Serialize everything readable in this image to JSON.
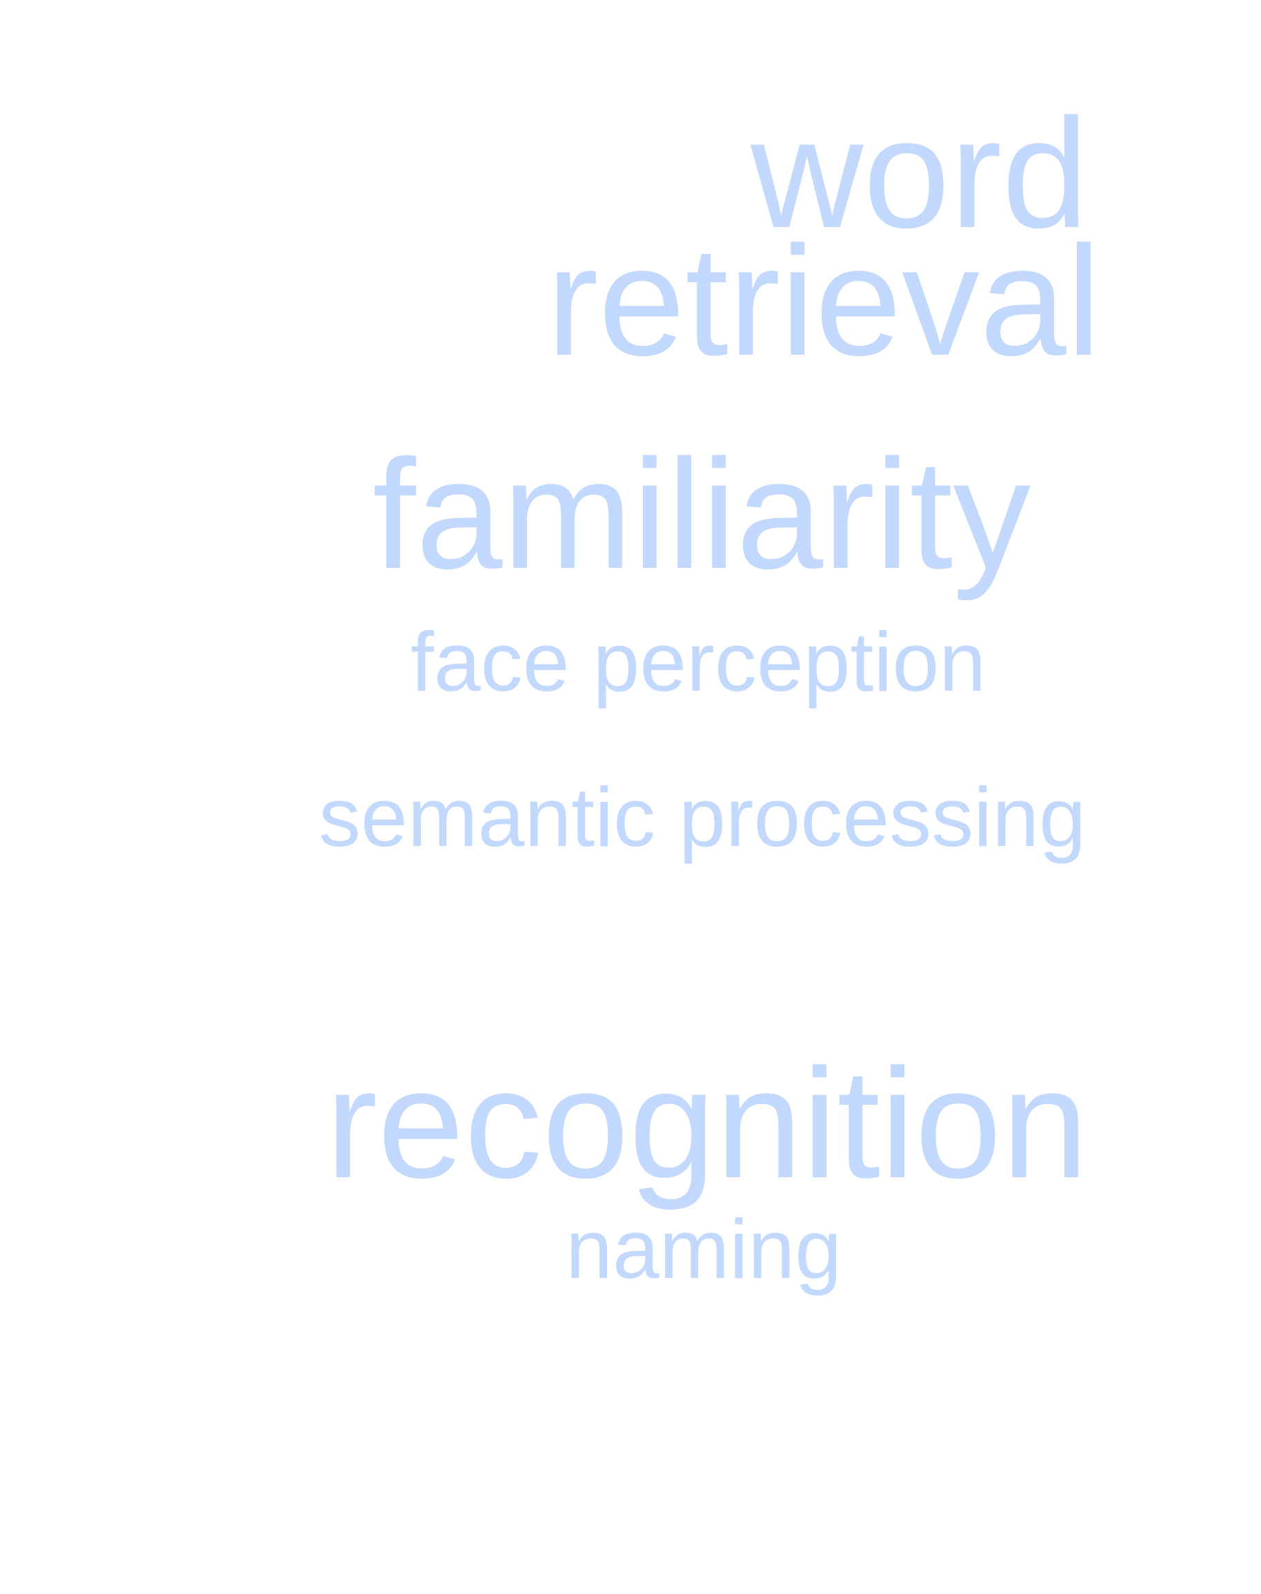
{
  "word_cloud": {
    "color": "#c2d8fc",
    "words": [
      {
        "id": "word",
        "text": "word"
      },
      {
        "id": "retrieval",
        "text": "retrieval"
      },
      {
        "id": "familiarity",
        "text": "familiarity"
      },
      {
        "id": "face_perception",
        "text": "face perception"
      },
      {
        "id": "semantic_processing",
        "text": "semantic processing"
      },
      {
        "id": "recognition",
        "text": "recognition"
      },
      {
        "id": "naming",
        "text": "naming"
      }
    ]
  }
}
